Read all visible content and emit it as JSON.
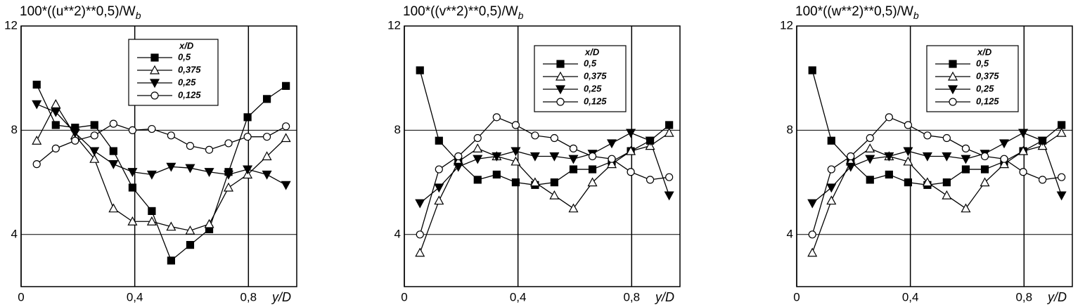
{
  "chart_data": [
    {
      "type": "line",
      "title": "100*((u**2)**0,5)/W",
      "title_subscript": "b",
      "xlabel": "y/D",
      "x": [
        0.055,
        0.122,
        0.19,
        0.258,
        0.325,
        0.392,
        0.46,
        0.528,
        0.595,
        0.662,
        0.73,
        0.797,
        0.865,
        0.932
      ],
      "xlim": [
        0,
        0.97
      ],
      "xticks": [
        0,
        {
          "value": 0.4,
          "label": "0,4"
        },
        {
          "value": 0.8,
          "label": "0,8"
        }
      ],
      "ylim": [
        2,
        12
      ],
      "yticks": [
        4,
        8,
        12
      ],
      "grid": true,
      "legend_title": "x/D",
      "legend": "upper center",
      "series": [
        {
          "name": "0,5",
          "color": "#000000",
          "marker": "square",
          "values": [
            9.75,
            8.2,
            8.1,
            8.2,
            7.2,
            5.8,
            4.9,
            3.0,
            3.6,
            4.2,
            6.4,
            8.5,
            9.2,
            9.7
          ]
        },
        {
          "name": "0,375",
          "color": "#000000",
          "marker": "triangle-up",
          "values": [
            7.6,
            9.0,
            7.8,
            6.9,
            5.0,
            4.5,
            4.5,
            4.3,
            4.15,
            4.4,
            5.8,
            6.3,
            7.0,
            7.7
          ]
        },
        {
          "name": "0,25",
          "color": "#000000",
          "marker": "triangle-down",
          "values": [
            9.0,
            8.7,
            7.9,
            7.2,
            6.7,
            6.4,
            6.3,
            6.6,
            6.55,
            6.4,
            6.3,
            6.5,
            6.3,
            5.9
          ]
        },
        {
          "name": "0,125",
          "color": "#000000",
          "marker": "circle",
          "values": [
            6.7,
            7.3,
            7.6,
            7.8,
            8.25,
            8.0,
            8.05,
            7.8,
            7.4,
            7.25,
            7.5,
            7.75,
            7.75,
            8.15
          ]
        }
      ]
    },
    {
      "type": "line",
      "title": "100*((v**2)**0,5)/W",
      "title_subscript": "b",
      "xlabel": "y/D",
      "x": [
        0.055,
        0.122,
        0.19,
        0.258,
        0.325,
        0.392,
        0.46,
        0.528,
        0.595,
        0.662,
        0.73,
        0.797,
        0.865,
        0.932
      ],
      "xlim": [
        0,
        0.97
      ],
      "xticks": [
        0,
        {
          "value": 0.4,
          "label": "0,4"
        },
        {
          "value": 0.8,
          "label": "0,8"
        }
      ],
      "ylim": [
        2,
        12
      ],
      "yticks": [
        4,
        8,
        12
      ],
      "grid": true,
      "legend_title": "x/D",
      "legend": "upper right",
      "series": [
        {
          "name": "0,5",
          "color": "#000000",
          "marker": "square",
          "values": [
            10.3,
            7.6,
            6.8,
            6.1,
            6.3,
            6.0,
            5.9,
            6.0,
            6.5,
            6.5,
            6.8,
            7.2,
            7.6,
            8.2
          ]
        },
        {
          "name": "0,375",
          "color": "#000000",
          "marker": "triangle-up",
          "values": [
            3.3,
            5.3,
            6.8,
            7.3,
            7.0,
            6.8,
            6.0,
            5.5,
            5.0,
            6.0,
            6.7,
            7.2,
            7.4,
            7.9
          ]
        },
        {
          "name": "0,25",
          "color": "#000000",
          "marker": "triangle-down",
          "values": [
            5.2,
            5.8,
            6.6,
            6.9,
            7.0,
            7.2,
            7.0,
            7.0,
            6.9,
            7.1,
            7.5,
            7.9,
            7.6,
            5.5
          ]
        },
        {
          "name": "0,125",
          "color": "#000000",
          "marker": "circle",
          "values": [
            4.0,
            6.5,
            7.0,
            7.7,
            8.5,
            8.2,
            7.8,
            7.7,
            7.3,
            7.0,
            6.9,
            6.4,
            6.1,
            6.2
          ]
        }
      ]
    },
    {
      "type": "line",
      "title": "100*((w**2)**0,5)/W",
      "title_subscript": "b",
      "xlabel": "y/D",
      "x": [
        0.055,
        0.122,
        0.19,
        0.258,
        0.325,
        0.392,
        0.46,
        0.528,
        0.595,
        0.662,
        0.73,
        0.797,
        0.865,
        0.932
      ],
      "xlim": [
        0,
        0.97
      ],
      "xticks": [
        0,
        {
          "value": 0.4,
          "label": "0,4"
        },
        {
          "value": 0.8,
          "label": "0,8"
        }
      ],
      "ylim": [
        2,
        12
      ],
      "yticks": [
        4,
        8,
        12
      ],
      "grid": true,
      "legend_title": "x/D",
      "legend": "upper right",
      "series": [
        {
          "name": "0,5",
          "color": "#000000",
          "marker": "square",
          "values": [
            10.3,
            7.6,
            6.8,
            6.1,
            6.3,
            6.0,
            5.9,
            6.0,
            6.5,
            6.5,
            6.8,
            7.2,
            7.6,
            8.2
          ]
        },
        {
          "name": "0,375",
          "color": "#000000",
          "marker": "triangle-up",
          "values": [
            3.3,
            5.3,
            6.8,
            7.3,
            7.0,
            6.8,
            6.0,
            5.5,
            5.0,
            6.0,
            6.7,
            7.2,
            7.4,
            7.9
          ]
        },
        {
          "name": "0,25",
          "color": "#000000",
          "marker": "triangle-down",
          "values": [
            5.2,
            5.8,
            6.6,
            6.9,
            7.0,
            7.2,
            7.0,
            7.0,
            6.9,
            7.1,
            7.5,
            7.9,
            7.6,
            5.5
          ]
        },
        {
          "name": "0,125",
          "color": "#000000",
          "marker": "circle",
          "values": [
            4.0,
            6.5,
            7.0,
            7.7,
            8.5,
            8.2,
            7.8,
            7.7,
            7.3,
            7.0,
            6.9,
            6.4,
            6.1,
            6.2
          ]
        }
      ]
    }
  ]
}
